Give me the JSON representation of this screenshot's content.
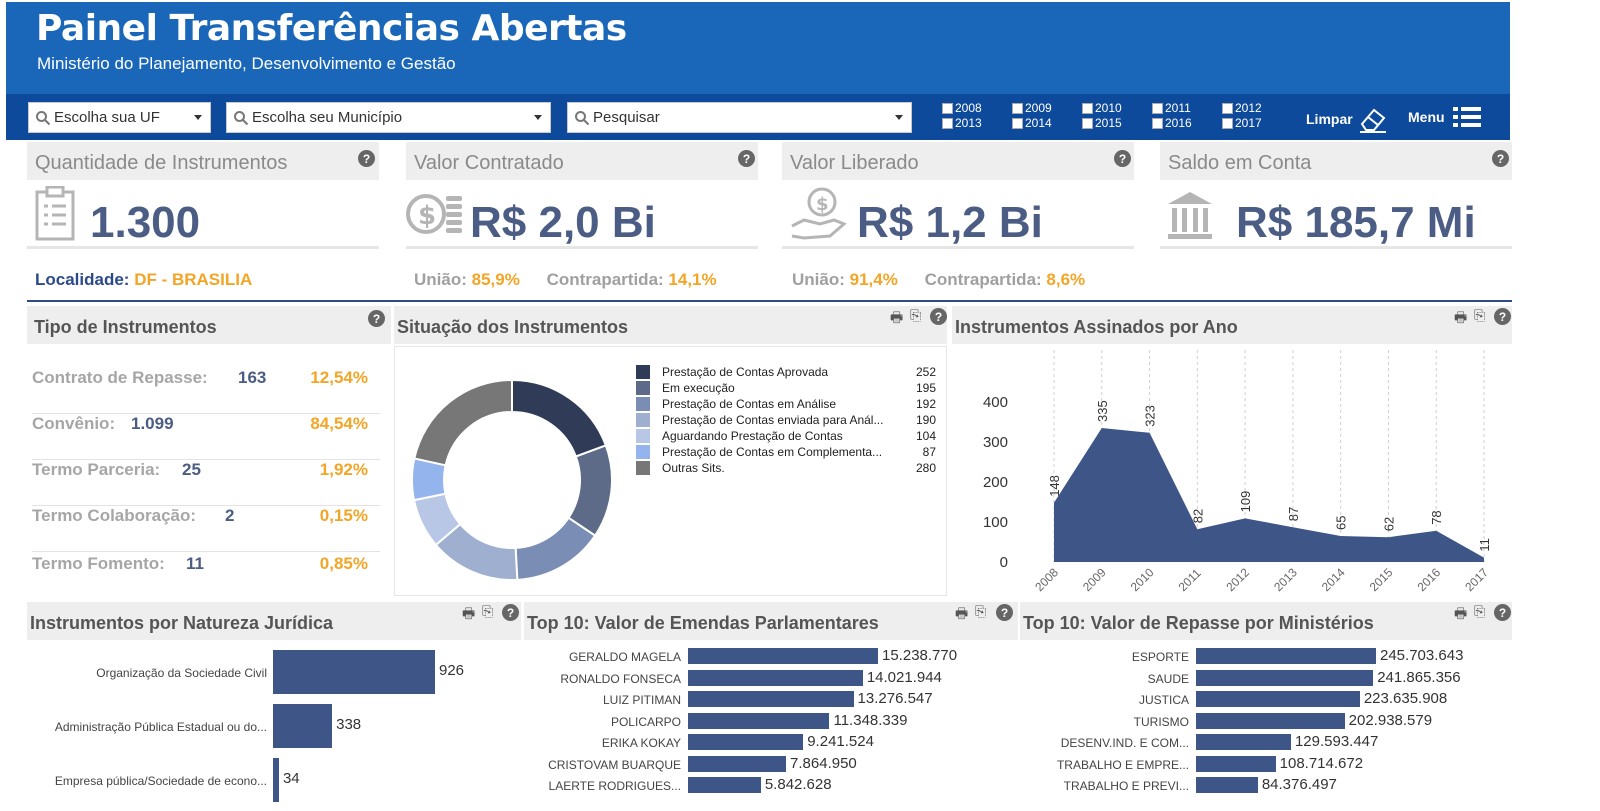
{
  "header": {
    "title": "Painel Transferências Abertas",
    "subtitle": "Ministério do Planejamento, Desenvolvimento e Gestão"
  },
  "filters": {
    "uf_placeholder": "Escolha sua UF",
    "municipio_placeholder": "Escolha seu Município",
    "search_placeholder": "Pesquisar",
    "years": [
      "2008",
      "2009",
      "2010",
      "2011",
      "2012",
      "2013",
      "2014",
      "2015",
      "2016",
      "2017"
    ],
    "clear_label": "Limpar",
    "menu_label": "Menu"
  },
  "kpis": [
    {
      "title": "Quantidade de Instrumentos",
      "value": "1.300",
      "icon": "clipboard-icon"
    },
    {
      "title": "Valor Contratado",
      "value": "R$ 2,0 Bi",
      "icon": "coins-icon"
    },
    {
      "title": "Valor Liberado",
      "value": "R$ 1,2 Bi",
      "icon": "hand-coin-icon"
    },
    {
      "title": "Saldo em Conta",
      "value": "R$ 185,7 Mi",
      "icon": "bank-icon"
    }
  ],
  "localidade": {
    "label": "Localidade:",
    "value": "DF - BRASILIA"
  },
  "contratado_split": {
    "uniao_label": "União:",
    "uniao_value": "85,9%",
    "contra_label": "Contrapartida:",
    "contra_value": "14,1%"
  },
  "liberado_split": {
    "uniao_label": "União:",
    "uniao_value": "91,4%",
    "contra_label": "Contrapartida:",
    "contra_value": "8,6%"
  },
  "tipo": {
    "title": "Tipo de Instrumentos",
    "rows": [
      {
        "label": "Contrato de Repasse:",
        "count": "163",
        "pct": "12,54%"
      },
      {
        "label": "Convênio:",
        "count": "1.099",
        "pct": "84,54%"
      },
      {
        "label": "Termo Parceria:",
        "count": "25",
        "pct": "1,92%"
      },
      {
        "label": "Termo Colaboração:",
        "count": "2",
        "pct": "0,15%"
      },
      {
        "label": "Termo Fomento:",
        "count": "11",
        "pct": "0,85%"
      }
    ]
  },
  "situacao": {
    "title": "Situação dos Instrumentos",
    "legend": [
      {
        "label": "Prestação de Contas Aprovada",
        "value": "252",
        "color": "#2f3b57"
      },
      {
        "label": "Em execução",
        "value": "195",
        "color": "#5d6a88"
      },
      {
        "label": "Prestação de Contas em Análise",
        "value": "192",
        "color": "#7a8db5"
      },
      {
        "label": "Prestação de Contas enviada para Anál...",
        "value": "190",
        "color": "#9fafcf"
      },
      {
        "label": "Aguardando Prestação de Contas",
        "value": "104",
        "color": "#b9c7e6"
      },
      {
        "label": "Prestação de Contas em Complementa...",
        "value": "87",
        "color": "#93b4ec"
      },
      {
        "label": "Outras Sits.",
        "value": "280",
        "color": "#777777"
      }
    ]
  },
  "chart_data": [
    {
      "type": "pie",
      "title": "Situação dos Instrumentos",
      "categories": [
        "Prestação de Contas Aprovada",
        "Em execução",
        "Prestação de Contas em Análise",
        "Prestação de Contas enviada para Anál...",
        "Aguardando Prestação de Contas",
        "Prestação de Contas em Complementa...",
        "Outras Sits."
      ],
      "values": [
        252,
        195,
        192,
        190,
        104,
        87,
        280
      ]
    },
    {
      "type": "area",
      "title": "Instrumentos Assinados por Ano",
      "x": [
        "2008",
        "2009",
        "2010",
        "2011",
        "2012",
        "2013",
        "2014",
        "2015",
        "2016",
        "2017"
      ],
      "values": [
        148,
        335,
        323,
        82,
        109,
        87,
        65,
        62,
        78,
        11
      ],
      "ylim": [
        0,
        400
      ],
      "yticks": [
        0,
        100,
        200,
        300,
        400
      ],
      "grid": true
    },
    {
      "type": "bar",
      "title": "Instrumentos por Natureza Jurídica",
      "categories": [
        "Organização da Sociedade Civil",
        "Administração Pública Estadual ou do...",
        "Empresa pública/Sociedade de econo..."
      ],
      "values": [
        926,
        338,
        34
      ],
      "value_labels": [
        "926",
        "338",
        "34"
      ]
    },
    {
      "type": "bar",
      "title": "Top 10: Valor de Emendas Parlamentares",
      "categories": [
        "GERALDO MAGELA",
        "RONALDO FONSECA",
        "LUIZ PITIMAN",
        "POLICARPO",
        "ERIKA KOKAY",
        "CRISTOVAM BUARQUE",
        "LAERTE RODRIGUES..."
      ],
      "values": [
        15238770,
        14021944,
        13276547,
        11348339,
        9241524,
        7864950,
        5842628
      ],
      "value_labels": [
        "15.238.770",
        "14.021.944",
        "13.276.547",
        "11.348.339",
        "9.241.524",
        "7.864.950",
        "5.842.628"
      ]
    },
    {
      "type": "bar",
      "title": "Top 10: Valor de Repasse por Ministérios",
      "categories": [
        "ESPORTE",
        "SAUDE",
        "JUSTICA",
        "TURISMO",
        "DESENV.IND. E COM...",
        "TRABALHO E EMPRE...",
        "TRABALHO E PREVI..."
      ],
      "values": [
        245703643,
        241865356,
        223635908,
        202938579,
        129593447,
        108714672,
        84376497
      ],
      "value_labels": [
        "245.703.643",
        "241.865.356",
        "223.635.908",
        "202.938.579",
        "129.593.447",
        "108.714.672",
        "84.376.497"
      ]
    }
  ],
  "panels": {
    "anual_title": "Instrumentos Assinados por Ano",
    "natureza_title": "Instrumentos por Natureza Jurídica",
    "emendas_title": "Top 10: Valor de Emendas Parlamentares",
    "ministerios_title": "Top 10: Valor de Repasse por Ministérios"
  },
  "colors": {
    "header": "#1a66b8",
    "filterbar": "#0e4a9b",
    "bar": "#3e5587",
    "accent": "#f3a526",
    "value": "#4b5d84"
  }
}
